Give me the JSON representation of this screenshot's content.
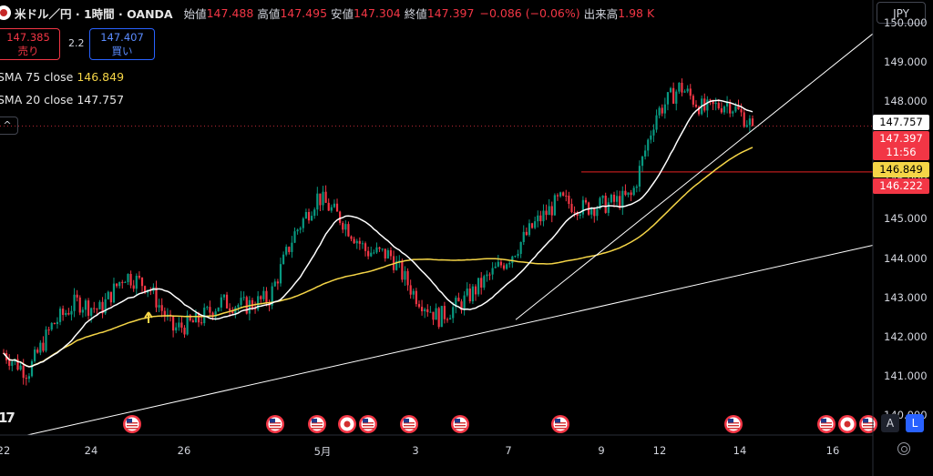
{
  "header": {
    "symbol": "米ドル／円 · 1時間 · OANDA",
    "open_label": "始値",
    "open_value": "147.488",
    "high_label": "高値",
    "high_value": "147.495",
    "low_label": "安値",
    "low_value": "147.304",
    "close_label": "終値",
    "close_value": "147.397",
    "change_value": "−0.086 (−0.06%)",
    "volume_label": "出来高",
    "volume_value": "1.98 K"
  },
  "trade": {
    "sell_price": "147.385",
    "sell_label": "売り",
    "spread": "2.2",
    "buy_price": "147.407",
    "buy_label": "買い"
  },
  "indicators": [
    {
      "name": "SMA 75 close",
      "value": "146.849"
    },
    {
      "name": "SMA 20 close",
      "value": "147.757"
    }
  ],
  "collapse_symbol": "^",
  "currency": "JPY",
  "scale_buttons": {
    "auto": "A",
    "log": "L"
  },
  "tv_logo": "17",
  "colors": {
    "up": "#089981",
    "down": "#f23645",
    "sma75": "#f5d547",
    "sma20": "#ffffff",
    "trendline": "#ffffff",
    "hline": "#b71c1c",
    "buy": "#2962ff"
  },
  "price_tags": {
    "sma20": "147.757",
    "last": "147.397",
    "countdown": "11:56",
    "sma75": "146.849",
    "hline": "146.222"
  },
  "chart_data": {
    "type": "candlestick",
    "instrument": "USD/JPY",
    "timeframe": "1h",
    "ylim": [
      140.5,
      150.2
    ],
    "y_ticks": [
      "150.000",
      "149.000",
      "148.000",
      "147.000",
      "146.000",
      "145.000",
      "144.000",
      "143.000",
      "142.000",
      "141.000",
      "140.000"
    ],
    "x_ticks": [
      "22",
      "24",
      "26",
      "5月",
      "3",
      "7",
      "9",
      "12",
      "14",
      "16"
    ],
    "series": [
      {
        "name": "SMA 75 close",
        "last": 146.849
      },
      {
        "name": "SMA 20 close",
        "last": 147.757
      }
    ],
    "price_path": [
      [
        "22",
        141.6
      ],
      [
        "23",
        141.1
      ],
      [
        "24",
        142.3
      ],
      [
        "24",
        142.9
      ],
      [
        "25",
        142.7
      ],
      [
        "25",
        143.6
      ],
      [
        "26",
        143.3
      ],
      [
        "26",
        142.2
      ],
      [
        "27",
        142.4
      ],
      [
        "28",
        142.9
      ],
      [
        "30",
        142.8
      ],
      [
        "5月",
        143.0
      ],
      [
        "1",
        144.6
      ],
      [
        "2",
        145.6
      ],
      [
        "2",
        145.0
      ],
      [
        "3",
        144.2
      ],
      [
        "4",
        144.1
      ],
      [
        "6",
        143.1
      ],
      [
        "7",
        142.5
      ],
      [
        "7",
        142.9
      ],
      [
        "8",
        143.5
      ],
      [
        "8",
        144.1
      ],
      [
        "9",
        144.9
      ],
      [
        "9",
        145.5
      ],
      [
        "10",
        145.3
      ],
      [
        "11",
        145.4
      ],
      [
        "12",
        145.6
      ],
      [
        "12",
        147.7
      ],
      [
        "13",
        148.4
      ],
      [
        "13",
        147.8
      ],
      [
        "14",
        148.0
      ],
      [
        "14",
        147.397
      ]
    ],
    "trendlines": [
      {
        "from": [
          "22",
          140.0
        ],
        "to": [
          "16",
          144.3
        ]
      },
      {
        "from": [
          "7",
          142.4
        ],
        "to": [
          "16",
          149.8
        ]
      }
    ],
    "horizontal_lines": [
      146.222
    ],
    "events": [
      {
        "date": "25",
        "flag": "US"
      },
      {
        "date": "5月",
        "flag": "US"
      },
      {
        "date": "1",
        "flag": "US"
      },
      {
        "date": "1",
        "flag": "JP"
      },
      {
        "date": "2",
        "flag": "US"
      },
      {
        "date": "3",
        "flag": "US"
      },
      {
        "date": "6",
        "flag": "US"
      },
      {
        "date": "8",
        "flag": "US"
      },
      {
        "date": "13",
        "flag": "US"
      },
      {
        "date": "16",
        "flag": "US"
      },
      {
        "date": "16",
        "flag": "JP"
      },
      {
        "date": "17",
        "flag": "US"
      }
    ]
  }
}
